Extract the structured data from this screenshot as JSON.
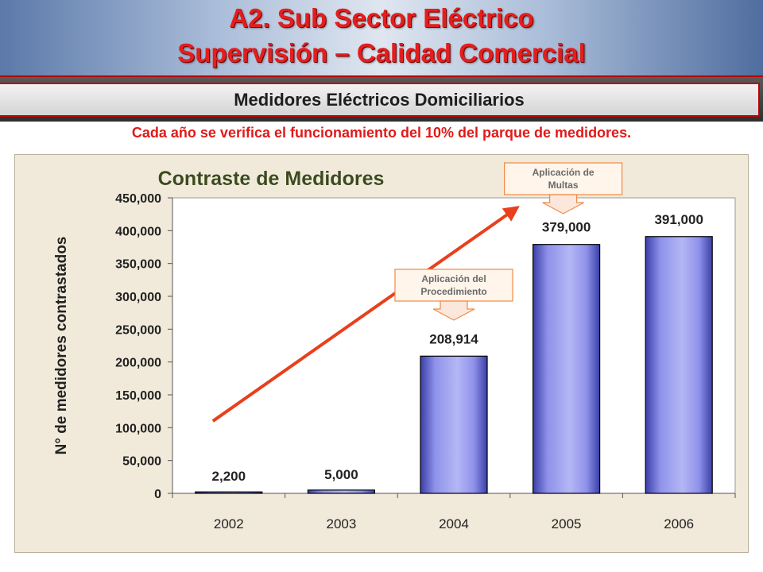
{
  "header": {
    "title_line1": "A2. Sub Sector Eléctrico",
    "title_line2": "Supervisión – Calidad Comercial",
    "subtitle": "Medidores Eléctricos Domiciliarios",
    "note": "Cada año se verifica el funcionamiento del 10% del parque de medidores."
  },
  "colors": {
    "title_red": "#e31e1e",
    "bar_blue": "#8f92ea",
    "trend_arrow": "#e8401c",
    "chart_bg": "#f1eadb"
  },
  "annotations": [
    {
      "lines": [
        "Aplicación del",
        "Procedimiento"
      ],
      "points_to": "2004"
    },
    {
      "lines": [
        "Aplicación de",
        "Multas"
      ],
      "points_to": "2005"
    }
  ],
  "chart_data": {
    "type": "bar",
    "title": "Contraste de Medidores",
    "xlabel": "",
    "ylabel": "N° de medidores contrastados",
    "categories": [
      "2002",
      "2003",
      "2004",
      "2005",
      "2006"
    ],
    "values": [
      2200,
      5000,
      208914,
      379000,
      391000
    ],
    "value_labels": [
      "2,200",
      "5,000",
      "208,914",
      "379,000",
      "391,000"
    ],
    "ylim": [
      0,
      450000
    ],
    "yticks": [
      0,
      50000,
      100000,
      150000,
      200000,
      250000,
      300000,
      350000,
      400000,
      450000
    ],
    "ytick_labels": [
      "0",
      "50,000",
      "100,000",
      "150,000",
      "200,000",
      "250,000",
      "300,000",
      "350,000",
      "400,000",
      "450,000"
    ],
    "grid": false,
    "legend": "none",
    "trend_arrow": "rising from 2002 to 2005"
  }
}
